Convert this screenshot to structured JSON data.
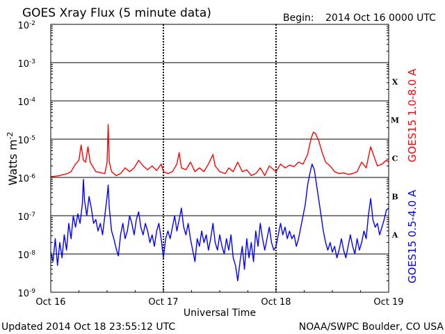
{
  "header": {
    "title": "GOES Xray Flux (5 minute data)",
    "begin_label": "Begin:",
    "begin_value": "2014 Oct 16 0000 UTC"
  },
  "footer": {
    "updated": "Updated 2014 Oct 18 23:55:12 UTC",
    "credit": "NOAA/SWPC Boulder, CO USA"
  },
  "chart_data": {
    "type": "line",
    "xlabel": "Universal Time",
    "ylabel": "Watts m",
    "ylabel_sup": "-2",
    "yscale": "log",
    "ylim_exp": [
      -9,
      -2
    ],
    "ytick_base": "10",
    "yticks": [
      {
        "exp": -9,
        "label": "-9"
      },
      {
        "exp": -8,
        "label": "-8"
      },
      {
        "exp": -7,
        "label": "-7"
      },
      {
        "exp": -6,
        "label": "-6"
      },
      {
        "exp": -5,
        "label": "-5"
      },
      {
        "exp": -4,
        "label": "-4"
      },
      {
        "exp": -3,
        "label": "-3"
      },
      {
        "exp": -2,
        "label": "-2"
      }
    ],
    "xlim": [
      0,
      3
    ],
    "xticks": [
      {
        "x": 0,
        "label": "Oct 16"
      },
      {
        "x": 1,
        "label": "Oct 17"
      },
      {
        "x": 2,
        "label": "Oct 18"
      },
      {
        "x": 3,
        "label": "Oct 19"
      }
    ],
    "flare_classes": [
      {
        "label": "A",
        "exp": -7.5
      },
      {
        "label": "B",
        "exp": -6.5
      },
      {
        "label": "C",
        "exp": -5.5
      },
      {
        "label": "M",
        "exp": -4.5
      },
      {
        "label": "X",
        "exp": -3.5
      }
    ],
    "series": [
      {
        "name": "GOES15 1.0-8.0 A",
        "color": "#ff0000",
        "points": [
          [
            0.0,
            -5.98
          ],
          [
            0.04,
            -5.97
          ],
          [
            0.08,
            -5.95
          ],
          [
            0.12,
            -5.92
          ],
          [
            0.15,
            -5.9
          ],
          [
            0.18,
            -5.85
          ],
          [
            0.2,
            -5.75
          ],
          [
            0.22,
            -5.65
          ],
          [
            0.25,
            -5.55
          ],
          [
            0.27,
            -5.15
          ],
          [
            0.29,
            -5.55
          ],
          [
            0.31,
            -5.6
          ],
          [
            0.33,
            -5.2
          ],
          [
            0.35,
            -5.6
          ],
          [
            0.38,
            -5.75
          ],
          [
            0.4,
            -5.85
          ],
          [
            0.45,
            -5.88
          ],
          [
            0.48,
            -5.9
          ],
          [
            0.5,
            -5.6
          ],
          [
            0.51,
            -4.62
          ],
          [
            0.52,
            -5.6
          ],
          [
            0.54,
            -5.85
          ],
          [
            0.58,
            -5.95
          ],
          [
            0.62,
            -5.9
          ],
          [
            0.66,
            -5.75
          ],
          [
            0.7,
            -5.85
          ],
          [
            0.74,
            -5.75
          ],
          [
            0.78,
            -5.55
          ],
          [
            0.82,
            -5.7
          ],
          [
            0.86,
            -5.8
          ],
          [
            0.9,
            -5.7
          ],
          [
            0.94,
            -5.82
          ],
          [
            0.98,
            -5.65
          ],
          [
            1.0,
            -5.85
          ],
          [
            1.04,
            -5.9
          ],
          [
            1.08,
            -5.85
          ],
          [
            1.12,
            -5.65
          ],
          [
            1.14,
            -5.35
          ],
          [
            1.16,
            -5.75
          ],
          [
            1.2,
            -5.8
          ],
          [
            1.24,
            -5.6
          ],
          [
            1.28,
            -5.85
          ],
          [
            1.32,
            -5.75
          ],
          [
            1.36,
            -5.85
          ],
          [
            1.4,
            -5.65
          ],
          [
            1.44,
            -5.4
          ],
          [
            1.46,
            -5.7
          ],
          [
            1.5,
            -5.85
          ],
          [
            1.55,
            -5.9
          ],
          [
            1.58,
            -5.75
          ],
          [
            1.62,
            -5.85
          ],
          [
            1.66,
            -5.6
          ],
          [
            1.7,
            -5.85
          ],
          [
            1.74,
            -5.8
          ],
          [
            1.78,
            -5.95
          ],
          [
            1.82,
            -5.9
          ],
          [
            1.86,
            -5.75
          ],
          [
            1.9,
            -5.95
          ],
          [
            1.94,
            -5.7
          ],
          [
            1.98,
            -5.8
          ],
          [
            2.0,
            -5.85
          ],
          [
            2.04,
            -5.65
          ],
          [
            2.08,
            -5.75
          ],
          [
            2.12,
            -5.68
          ],
          [
            2.16,
            -5.72
          ],
          [
            2.2,
            -5.6
          ],
          [
            2.24,
            -5.65
          ],
          [
            2.28,
            -5.4
          ],
          [
            2.31,
            -5.0
          ],
          [
            2.33,
            -4.82
          ],
          [
            2.35,
            -4.85
          ],
          [
            2.38,
            -5.05
          ],
          [
            2.41,
            -5.35
          ],
          [
            2.44,
            -5.6
          ],
          [
            2.48,
            -5.7
          ],
          [
            2.52,
            -5.85
          ],
          [
            2.56,
            -5.9
          ],
          [
            2.6,
            -5.88
          ],
          [
            2.64,
            -5.92
          ],
          [
            2.68,
            -5.9
          ],
          [
            2.72,
            -5.85
          ],
          [
            2.76,
            -5.6
          ],
          [
            2.8,
            -5.75
          ],
          [
            2.84,
            -5.2
          ],
          [
            2.87,
            -5.45
          ],
          [
            2.9,
            -5.7
          ],
          [
            2.94,
            -5.65
          ],
          [
            2.98,
            -5.55
          ],
          [
            3.0,
            -5.6
          ]
        ]
      },
      {
        "name": "GOES15 0.5-4.0 A",
        "color": "#0000ff",
        "points": [
          [
            0.0,
            -7.95
          ],
          [
            0.02,
            -8.2
          ],
          [
            0.04,
            -7.6
          ],
          [
            0.06,
            -8.3
          ],
          [
            0.08,
            -7.7
          ],
          [
            0.1,
            -8.1
          ],
          [
            0.12,
            -7.5
          ],
          [
            0.14,
            -7.9
          ],
          [
            0.16,
            -7.2
          ],
          [
            0.18,
            -7.6
          ],
          [
            0.2,
            -7.0
          ],
          [
            0.22,
            -7.3
          ],
          [
            0.24,
            -6.95
          ],
          [
            0.26,
            -7.2
          ],
          [
            0.28,
            -6.7
          ],
          [
            0.29,
            -6.05
          ],
          [
            0.3,
            -6.6
          ],
          [
            0.32,
            -7.0
          ],
          [
            0.34,
            -6.5
          ],
          [
            0.36,
            -6.8
          ],
          [
            0.38,
            -7.2
          ],
          [
            0.4,
            -7.1
          ],
          [
            0.42,
            -7.4
          ],
          [
            0.44,
            -7.2
          ],
          [
            0.46,
            -7.5
          ],
          [
            0.48,
            -7.0
          ],
          [
            0.5,
            -6.5
          ],
          [
            0.51,
            -6.2
          ],
          [
            0.52,
            -6.8
          ],
          [
            0.54,
            -7.4
          ],
          [
            0.56,
            -7.6
          ],
          [
            0.58,
            -7.85
          ],
          [
            0.6,
            -8.05
          ],
          [
            0.62,
            -7.5
          ],
          [
            0.64,
            -7.2
          ],
          [
            0.66,
            -7.6
          ],
          [
            0.68,
            -7.4
          ],
          [
            0.7,
            -7.0
          ],
          [
            0.72,
            -7.2
          ],
          [
            0.74,
            -7.5
          ],
          [
            0.76,
            -7.1
          ],
          [
            0.78,
            -6.9
          ],
          [
            0.8,
            -7.3
          ],
          [
            0.82,
            -7.5
          ],
          [
            0.84,
            -7.2
          ],
          [
            0.86,
            -7.4
          ],
          [
            0.88,
            -7.7
          ],
          [
            0.9,
            -7.5
          ],
          [
            0.92,
            -7.8
          ],
          [
            0.94,
            -7.4
          ],
          [
            0.96,
            -7.2
          ],
          [
            0.98,
            -7.6
          ],
          [
            1.0,
            -8.1
          ],
          [
            1.02,
            -7.6
          ],
          [
            1.04,
            -7.4
          ],
          [
            1.06,
            -7.6
          ],
          [
            1.08,
            -7.3
          ],
          [
            1.1,
            -7.0
          ],
          [
            1.12,
            -7.4
          ],
          [
            1.14,
            -7.1
          ],
          [
            1.16,
            -6.8
          ],
          [
            1.18,
            -7.3
          ],
          [
            1.2,
            -7.5
          ],
          [
            1.22,
            -7.2
          ],
          [
            1.24,
            -7.6
          ],
          [
            1.26,
            -7.9
          ],
          [
            1.28,
            -8.2
          ],
          [
            1.3,
            -7.6
          ],
          [
            1.32,
            -7.8
          ],
          [
            1.34,
            -7.4
          ],
          [
            1.36,
            -7.7
          ],
          [
            1.38,
            -7.5
          ],
          [
            1.4,
            -7.9
          ],
          [
            1.42,
            -7.6
          ],
          [
            1.44,
            -7.2
          ],
          [
            1.46,
            -7.7
          ],
          [
            1.48,
            -7.9
          ],
          [
            1.5,
            -7.5
          ],
          [
            1.52,
            -7.8
          ],
          [
            1.54,
            -8.0
          ],
          [
            1.56,
            -7.6
          ],
          [
            1.58,
            -7.9
          ],
          [
            1.6,
            -7.5
          ],
          [
            1.62,
            -8.1
          ],
          [
            1.64,
            -8.3
          ],
          [
            1.66,
            -8.7
          ],
          [
            1.68,
            -8.2
          ],
          [
            1.7,
            -7.8
          ],
          [
            1.72,
            -8.4
          ],
          [
            1.74,
            -7.6
          ],
          [
            1.76,
            -8.1
          ],
          [
            1.78,
            -7.7
          ],
          [
            1.8,
            -8.2
          ],
          [
            1.82,
            -7.4
          ],
          [
            1.84,
            -7.8
          ],
          [
            1.86,
            -7.2
          ],
          [
            1.88,
            -7.6
          ],
          [
            1.9,
            -7.9
          ],
          [
            1.92,
            -7.6
          ],
          [
            1.94,
            -7.3
          ],
          [
            1.96,
            -7.7
          ],
          [
            1.98,
            -7.9
          ],
          [
            2.0,
            -7.8
          ],
          [
            2.02,
            -7.5
          ],
          [
            2.04,
            -7.2
          ],
          [
            2.06,
            -7.5
          ],
          [
            2.08,
            -7.3
          ],
          [
            2.1,
            -7.6
          ],
          [
            2.12,
            -7.4
          ],
          [
            2.14,
            -7.6
          ],
          [
            2.16,
            -7.5
          ],
          [
            2.18,
            -7.8
          ],
          [
            2.2,
            -7.6
          ],
          [
            2.22,
            -7.3
          ],
          [
            2.24,
            -7.0
          ],
          [
            2.26,
            -6.7
          ],
          [
            2.28,
            -6.2
          ],
          [
            2.3,
            -5.9
          ],
          [
            2.32,
            -5.65
          ],
          [
            2.34,
            -5.8
          ],
          [
            2.36,
            -6.2
          ],
          [
            2.38,
            -6.6
          ],
          [
            2.4,
            -7.0
          ],
          [
            2.42,
            -7.4
          ],
          [
            2.44,
            -7.7
          ],
          [
            2.46,
            -7.9
          ],
          [
            2.48,
            -7.7
          ],
          [
            2.5,
            -7.95
          ],
          [
            2.52,
            -7.8
          ],
          [
            2.54,
            -8.1
          ],
          [
            2.56,
            -7.9
          ],
          [
            2.58,
            -7.6
          ],
          [
            2.6,
            -7.9
          ],
          [
            2.62,
            -8.1
          ],
          [
            2.64,
            -7.8
          ],
          [
            2.66,
            -7.5
          ],
          [
            2.68,
            -7.8
          ],
          [
            2.7,
            -8.0
          ],
          [
            2.72,
            -7.6
          ],
          [
            2.74,
            -7.9
          ],
          [
            2.76,
            -7.7
          ],
          [
            2.78,
            -7.4
          ],
          [
            2.8,
            -7.6
          ],
          [
            2.82,
            -7.0
          ],
          [
            2.84,
            -6.55
          ],
          [
            2.86,
            -7.1
          ],
          [
            2.88,
            -7.3
          ],
          [
            2.9,
            -7.2
          ],
          [
            2.92,
            -7.5
          ],
          [
            2.94,
            -7.3
          ],
          [
            2.96,
            -7.1
          ],
          [
            2.98,
            -6.85
          ],
          [
            3.0,
            -6.8
          ]
        ]
      }
    ]
  }
}
